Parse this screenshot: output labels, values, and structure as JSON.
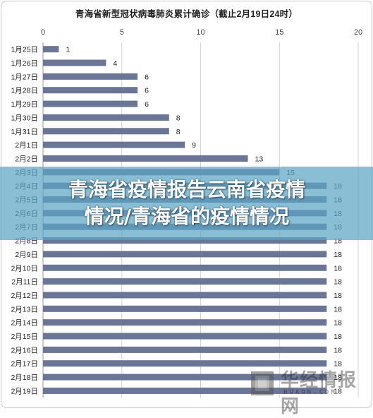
{
  "chart_data": {
    "type": "bar",
    "orientation": "horizontal",
    "title": "青海省新型冠状病毒肺炎累计确诊（截止2月19日24时）",
    "categories": [
      "1月25日",
      "1月26日",
      "1月27日",
      "1月28日",
      "1月29日",
      "1月30日",
      "1月31日",
      "2月1日",
      "2月2日",
      "2月3日",
      "2月4日",
      "2月5日",
      "2月6日",
      "2月7日",
      "2月8日",
      "2月9日",
      "2月10日",
      "2月11日",
      "2月12日",
      "2月13日",
      "2月14日",
      "2月15日",
      "2月16日",
      "2月17日",
      "2月18日",
      "2月19日"
    ],
    "values": [
      1,
      4,
      6,
      6,
      6,
      8,
      8,
      9,
      13,
      15,
      18,
      18,
      18,
      18,
      18,
      18,
      18,
      18,
      18,
      18,
      18,
      18,
      18,
      18,
      18,
      18
    ],
    "xlim": [
      0,
      20
    ],
    "xticks": [
      0,
      5,
      10,
      15,
      20
    ],
    "xaxis_position": "top",
    "grid": true,
    "bar_color": "#6b7596",
    "grid_color": "#d4d4d4"
  },
  "overlay": {
    "banner_line1": "青海省疫情报告云南省疫情",
    "banner_line2": "情况/青海省的疫情情况",
    "banner_color": "#5ca5c4"
  },
  "watermark": {
    "name": "华经情报网",
    "domain": "HUAON.COM"
  }
}
